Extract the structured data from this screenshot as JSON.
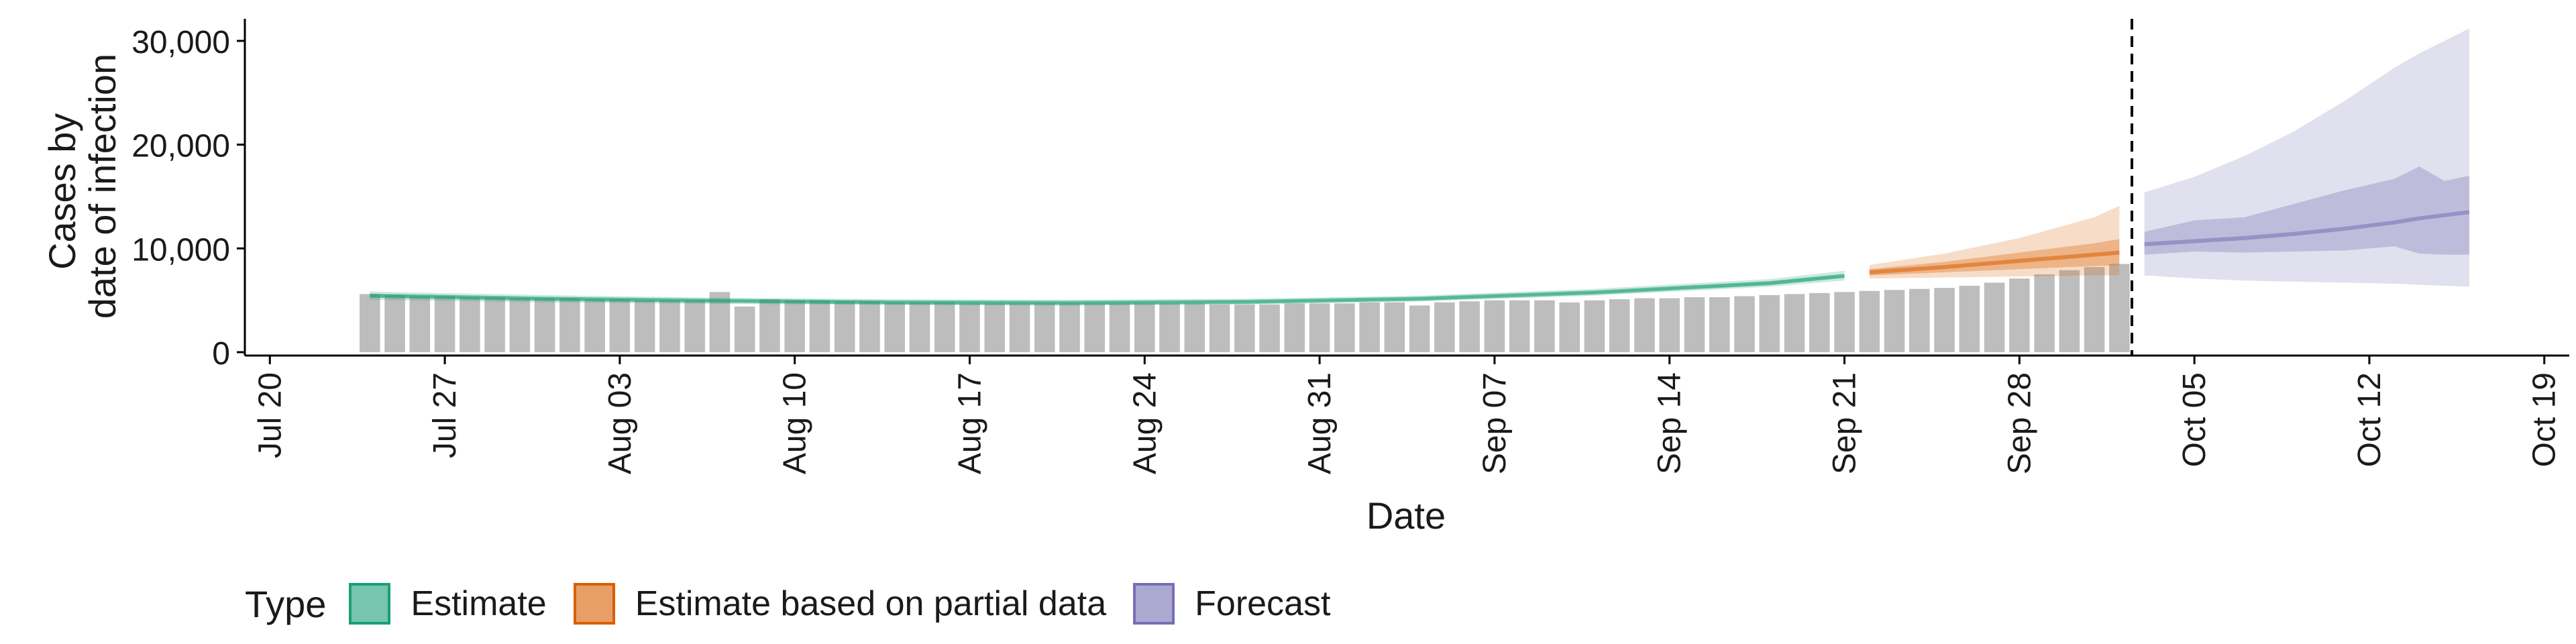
{
  "chart_data": {
    "type": "bar",
    "title": "",
    "xlabel": "Date",
    "ylabel": [
      "Cases by",
      "date of infection"
    ],
    "ylim": [
      0,
      32000
    ],
    "yticks": [
      0,
      10000,
      20000,
      30000
    ],
    "ytick_labels": [
      "0",
      "10,000",
      "20,000",
      "30,000"
    ],
    "xlim": [
      "2020-07-19",
      "2020-10-20"
    ],
    "xticks": [
      "2020-07-20",
      "2020-07-27",
      "2020-08-03",
      "2020-08-10",
      "2020-08-17",
      "2020-08-24",
      "2020-08-31",
      "2020-09-07",
      "2020-09-14",
      "2020-09-21",
      "2020-09-28",
      "2020-10-05",
      "2020-10-12",
      "2020-10-19"
    ],
    "xtick_labels": [
      "Jul 20",
      "Jul 27",
      "Aug 03",
      "Aug 10",
      "Aug 17",
      "Aug 24",
      "Aug 31",
      "Sep 07",
      "Sep 14",
      "Sep 21",
      "Sep 28",
      "Oct 05",
      "Oct 12",
      "Oct 19"
    ],
    "grid": false,
    "forecast_date": "2020-10-02",
    "bar_color": "#bdbdbd",
    "bars": {
      "dates": [
        "2020-07-24",
        "2020-07-25",
        "2020-07-26",
        "2020-07-27",
        "2020-07-28",
        "2020-07-29",
        "2020-07-30",
        "2020-07-31",
        "2020-08-01",
        "2020-08-02",
        "2020-08-03",
        "2020-08-04",
        "2020-08-05",
        "2020-08-06",
        "2020-08-07",
        "2020-08-08",
        "2020-08-09",
        "2020-08-10",
        "2020-08-11",
        "2020-08-12",
        "2020-08-13",
        "2020-08-14",
        "2020-08-15",
        "2020-08-16",
        "2020-08-17",
        "2020-08-18",
        "2020-08-19",
        "2020-08-20",
        "2020-08-21",
        "2020-08-22",
        "2020-08-23",
        "2020-08-24",
        "2020-08-25",
        "2020-08-26",
        "2020-08-27",
        "2020-08-28",
        "2020-08-29",
        "2020-08-30",
        "2020-08-31",
        "2020-09-01",
        "2020-09-02",
        "2020-09-03",
        "2020-09-04",
        "2020-09-05",
        "2020-09-06",
        "2020-09-07",
        "2020-09-08",
        "2020-09-09",
        "2020-09-10",
        "2020-09-11",
        "2020-09-12",
        "2020-09-13",
        "2020-09-14",
        "2020-09-15",
        "2020-09-16",
        "2020-09-17",
        "2020-09-18",
        "2020-09-19",
        "2020-09-20",
        "2020-09-21",
        "2020-09-22",
        "2020-09-23",
        "2020-09-24",
        "2020-09-25",
        "2020-09-26",
        "2020-09-27",
        "2020-09-28",
        "2020-09-29",
        "2020-09-30",
        "2020-10-01",
        "2020-10-02"
      ],
      "values": [
        5600,
        5500,
        5400,
        5400,
        5300,
        5300,
        5200,
        5200,
        5200,
        5100,
        5100,
        5000,
        5000,
        5000,
        5800,
        4400,
        5100,
        5000,
        5000,
        4900,
        4900,
        4800,
        4800,
        4800,
        4700,
        4700,
        4700,
        4700,
        4700,
        4700,
        4700,
        4700,
        4700,
        4700,
        4600,
        4600,
        4600,
        4700,
        4700,
        4700,
        4800,
        4800,
        4500,
        4800,
        4900,
        5000,
        5000,
        5000,
        4800,
        5000,
        5100,
        5200,
        5200,
        5300,
        5300,
        5400,
        5500,
        5600,
        5700,
        5800,
        5900,
        6000,
        6100,
        6200,
        6400,
        6700,
        7100,
        7500,
        7900,
        8200,
        8500
      ]
    },
    "series": [
      {
        "name": "Estimate",
        "color": "#1b9e77",
        "dates": [
          "2020-07-24",
          "2020-07-31",
          "2020-08-07",
          "2020-08-14",
          "2020-08-21",
          "2020-08-28",
          "2020-09-04",
          "2020-09-11",
          "2020-09-18",
          "2020-09-21"
        ],
        "median": [
          5450,
          5150,
          4950,
          4800,
          4750,
          4850,
          5150,
          5750,
          6650,
          7350
        ],
        "lower_90": [
          5050,
          4800,
          4650,
          4550,
          4500,
          4600,
          4900,
          5450,
          6300,
          6900
        ],
        "upper_90": [
          5850,
          5500,
          5250,
          5100,
          5050,
          5150,
          5450,
          6100,
          7050,
          7850
        ],
        "lower_50": [
          5300,
          5030,
          4850,
          4700,
          4650,
          4750,
          5050,
          5650,
          6500,
          7200
        ],
        "upper_50": [
          5600,
          5270,
          5050,
          4900,
          4850,
          4950,
          5250,
          5850,
          6800,
          7500
        ]
      },
      {
        "name": "Estimate based on partial data",
        "color": "#d95f02",
        "dates": [
          "2020-09-22",
          "2020-09-25",
          "2020-09-28",
          "2020-10-01",
          "2020-10-02"
        ],
        "median": [
          7700,
          8200,
          8800,
          9400,
          9600
        ],
        "lower_90": [
          7100,
          7200,
          7300,
          7400,
          7400
        ],
        "upper_90": [
          8400,
          9500,
          11000,
          13000,
          14100
        ],
        "lower_50": [
          7400,
          7700,
          8000,
          8300,
          8400
        ],
        "upper_50": [
          8000,
          8700,
          9600,
          10500,
          10900
        ]
      },
      {
        "name": "Forecast",
        "color": "#7570b3",
        "dates": [
          "2020-10-03",
          "2020-10-05",
          "2020-10-07",
          "2020-10-09",
          "2020-10-11",
          "2020-10-13",
          "2020-10-14",
          "2020-10-15",
          "2020-10-16"
        ],
        "median": [
          10400,
          10700,
          11000,
          11400,
          11900,
          12500,
          12900,
          13200,
          13500
        ],
        "lower_90": [
          7400,
          7100,
          6900,
          6800,
          6700,
          6600,
          6500,
          6400,
          6300
        ],
        "upper_90": [
          15400,
          16900,
          18900,
          21300,
          24200,
          27400,
          28800,
          30000,
          31200
        ],
        "lower_50": [
          9400,
          9700,
          9600,
          9700,
          9800,
          10200,
          9500,
          9400,
          9400
        ],
        "upper_50": [
          11600,
          12700,
          13000,
          14300,
          15600,
          16700,
          17900,
          16500,
          17000
        ]
      }
    ],
    "legend": {
      "title": "Type",
      "position": "bottom",
      "items": [
        {
          "label": "Estimate",
          "color": "#1b9e77"
        },
        {
          "label": "Estimate based on partial data",
          "color": "#d95f02"
        },
        {
          "label": "Forecast",
          "color": "#7570b3"
        }
      ]
    }
  }
}
